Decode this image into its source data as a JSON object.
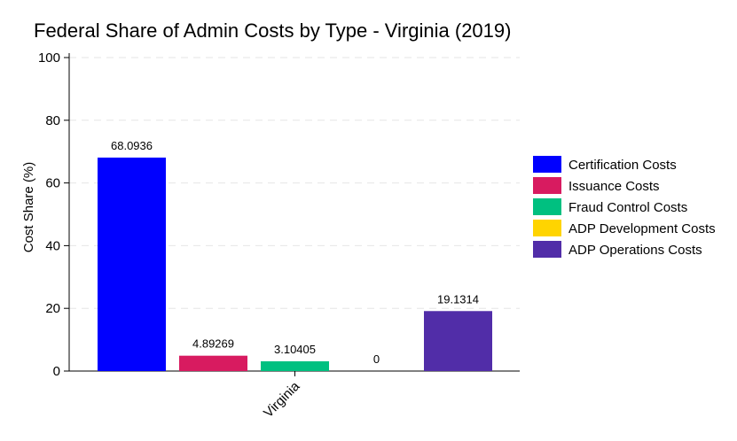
{
  "chart_data": {
    "type": "bar",
    "title": "Federal Share of Admin Costs by Type - Virginia (2019)",
    "xlabel": "",
    "ylabel": "Cost Share (%)",
    "ylim": [
      0,
      100
    ],
    "yticks": [
      0,
      20,
      40,
      60,
      80,
      100
    ],
    "categories": [
      "Virginia"
    ],
    "grid": "horizontal dashed",
    "legend_position": "right",
    "series": [
      {
        "name": "Certification Costs",
        "values": [
          68.0936
        ],
        "label": "68.0936",
        "color": "#0000ff"
      },
      {
        "name": "Issuance Costs",
        "values": [
          4.89269
        ],
        "label": "4.89269",
        "color": "#d81b60"
      },
      {
        "name": "Fraud Control Costs",
        "values": [
          3.10405
        ],
        "label": "3.10405",
        "color": "#00c080"
      },
      {
        "name": "ADP Development Costs",
        "values": [
          0
        ],
        "label": "0",
        "color": "#ffd400"
      },
      {
        "name": "ADP Operations Costs",
        "values": [
          19.1314
        ],
        "label": "19.1314",
        "color": "#512da8"
      }
    ]
  }
}
